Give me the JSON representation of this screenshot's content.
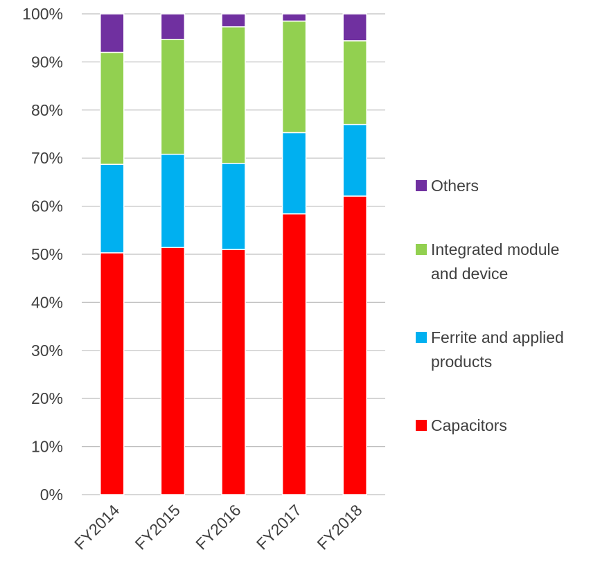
{
  "chart_data": {
    "type": "bar",
    "stacked": true,
    "normalized": true,
    "title": "",
    "xlabel": "",
    "ylabel": "",
    "ylim": [
      0,
      100
    ],
    "y_ticks": [
      "0%",
      "10%",
      "20%",
      "30%",
      "40%",
      "50%",
      "60%",
      "70%",
      "80%",
      "90%",
      "100%"
    ],
    "categories": [
      "FY2014",
      "FY2015",
      "FY2016",
      "FY2017",
      "FY2018"
    ],
    "series": [
      {
        "name": "Capacitors",
        "color": "#ff0000",
        "values": [
          50.3,
          51.4,
          51.0,
          58.4,
          62.1
        ]
      },
      {
        "name": "Ferrite and applied products",
        "color": "#00b0f0",
        "values": [
          18.4,
          19.4,
          17.9,
          16.9,
          14.9
        ]
      },
      {
        "name": "Integrated module and device",
        "color": "#92d050",
        "values": [
          23.3,
          23.9,
          28.4,
          23.2,
          17.4
        ]
      },
      {
        "name": "Others",
        "color": "#7030a0",
        "values": [
          8.0,
          5.3,
          2.7,
          1.5,
          5.6
        ]
      }
    ],
    "legend": {
      "position": "right",
      "order": [
        "Others",
        "Integrated module and device",
        "Ferrite and applied products",
        "Capacitors"
      ],
      "label_lines": {
        "Others": [
          "Others"
        ],
        "Integrated module and device": [
          "Integrated module",
          "and device"
        ],
        "Ferrite and applied products": [
          "Ferrite and applied",
          "products"
        ],
        "Capacitors": [
          "Capacitors"
        ]
      }
    },
    "grid": true,
    "x_tick_rotation_deg": -45
  }
}
